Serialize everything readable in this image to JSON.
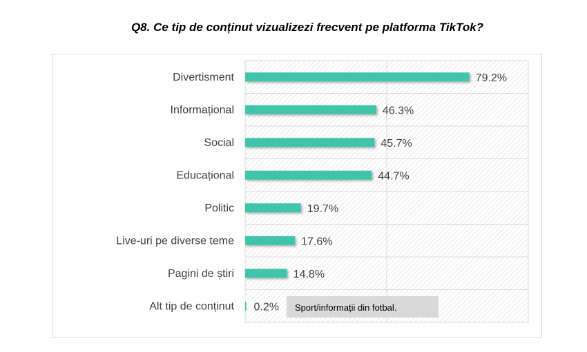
{
  "chart_data": {
    "type": "bar",
    "orientation": "horizontal",
    "title": "Q8. Ce tip de conținut vizualizezi frecvent pe platforma TikTok?",
    "categories": [
      "Divertisment",
      "Informațional",
      "Social",
      "Educațional",
      "Politic",
      "Live-uri pe diverse teme",
      "Pagini de știri",
      "Alt tip de conținut"
    ],
    "values": [
      79.2,
      46.3,
      45.7,
      44.7,
      19.7,
      17.6,
      14.8,
      0.2
    ],
    "labels": [
      "79.2%",
      "46.3%",
      "45.7%",
      "44.7%",
      "19.7%",
      "17.6%",
      "14.8%",
      "0.2%"
    ],
    "xlim": [
      0,
      100
    ],
    "grid": true,
    "bar_color": "#40c4aa",
    "annotation": "Sport/informații din fotbal."
  }
}
